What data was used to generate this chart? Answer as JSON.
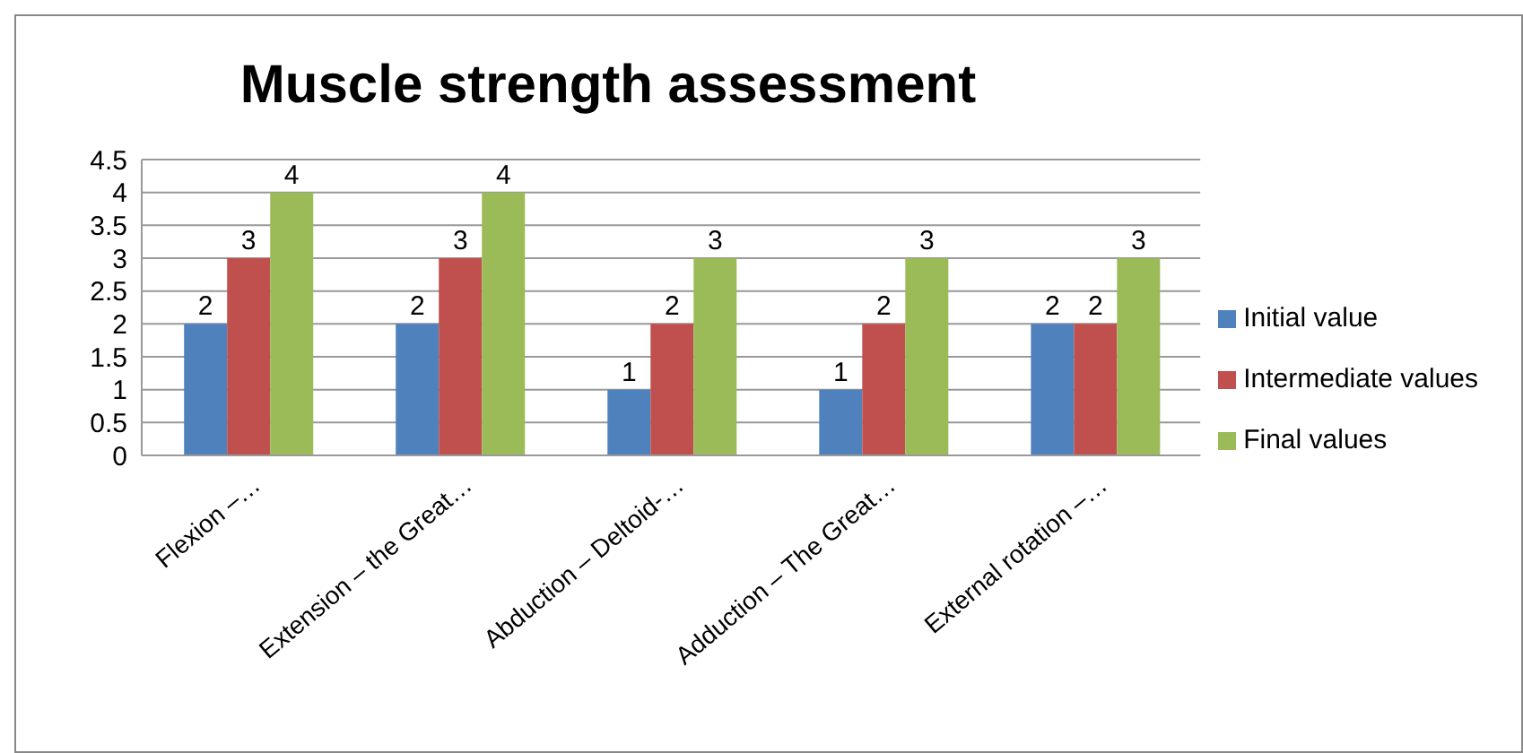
{
  "chart_data": {
    "type": "bar",
    "title": "Muscle strength assessment",
    "categories": [
      "Flexion –…",
      "Extension – the Great…",
      "Abduction – Deltoid-…",
      "Adduction – The Great…",
      "External rotation –…"
    ],
    "series": [
      {
        "name": "Initial value",
        "color": "#4f81bd",
        "values": [
          2,
          2,
          1,
          1,
          2
        ]
      },
      {
        "name": "Intermediate values",
        "color": "#c0504d",
        "values": [
          3,
          3,
          2,
          2,
          2
        ]
      },
      {
        "name": "Final values",
        "color": "#9bbb59",
        "values": [
          4,
          4,
          3,
          3,
          3
        ]
      }
    ],
    "ylim": [
      0,
      4.5
    ],
    "yticks": [
      0,
      0.5,
      1,
      1.5,
      2,
      2.5,
      3,
      3.5,
      4,
      4.5
    ],
    "grid": "y",
    "legend": "right",
    "data_labels": true
  }
}
